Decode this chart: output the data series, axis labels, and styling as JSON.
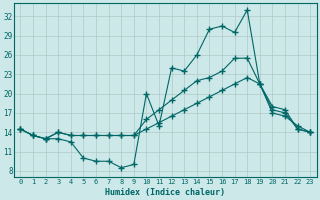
{
  "xlabel": "Humidex (Indice chaleur)",
  "background_color": "#cce8e8",
  "grid_color": "#b0c8c8",
  "line_color": "#006666",
  "x_ticks": [
    0,
    1,
    2,
    3,
    4,
    5,
    6,
    7,
    8,
    9,
    10,
    11,
    12,
    13,
    14,
    15,
    16,
    17,
    18,
    19,
    20,
    21,
    22,
    23
  ],
  "y_ticks": [
    8,
    11,
    14,
    17,
    20,
    23,
    26,
    29,
    32
  ],
  "xlim": [
    -0.5,
    23.5
  ],
  "ylim": [
    7,
    34
  ],
  "series": [
    {
      "x": [
        0,
        1,
        2,
        3,
        4,
        5,
        6,
        7,
        8,
        9,
        10,
        11,
        12,
        13,
        14,
        15,
        16,
        17,
        18,
        19,
        20,
        21,
        22,
        23
      ],
      "y": [
        14.5,
        13.5,
        13.0,
        13.0,
        12.5,
        10.0,
        9.5,
        9.5,
        8.5,
        9.0,
        20.0,
        15.0,
        24.0,
        23.5,
        26.0,
        30.0,
        30.5,
        29.5,
        33.0,
        21.5,
        17.0,
        16.5,
        15.0,
        14.0
      ],
      "marker": "+",
      "markersize": 4,
      "linewidth": 0.8
    },
    {
      "x": [
        0,
        1,
        2,
        3,
        4,
        5,
        6,
        7,
        8,
        9,
        10,
        11,
        12,
        13,
        14,
        15,
        16,
        17,
        18,
        19,
        20,
        21,
        22,
        23
      ],
      "y": [
        14.5,
        13.5,
        13.0,
        14.0,
        13.5,
        13.5,
        13.5,
        13.5,
        13.5,
        13.5,
        16.0,
        17.5,
        19.0,
        20.5,
        22.0,
        22.5,
        23.5,
        25.5,
        25.5,
        21.5,
        17.5,
        17.0,
        14.5,
        14.0
      ],
      "marker": "+",
      "markersize": 4,
      "linewidth": 0.8
    },
    {
      "x": [
        0,
        1,
        2,
        3,
        4,
        5,
        6,
        7,
        8,
        9,
        10,
        11,
        12,
        13,
        14,
        15,
        16,
        17,
        18,
        19,
        20,
        21,
        22,
        23
      ],
      "y": [
        14.5,
        13.5,
        13.0,
        14.0,
        13.5,
        13.5,
        13.5,
        13.5,
        13.5,
        13.5,
        14.5,
        15.5,
        16.5,
        17.5,
        18.5,
        19.5,
        20.5,
        21.5,
        22.5,
        21.5,
        18.0,
        17.5,
        14.5,
        14.0
      ],
      "marker": "+",
      "markersize": 4,
      "linewidth": 0.8
    }
  ]
}
